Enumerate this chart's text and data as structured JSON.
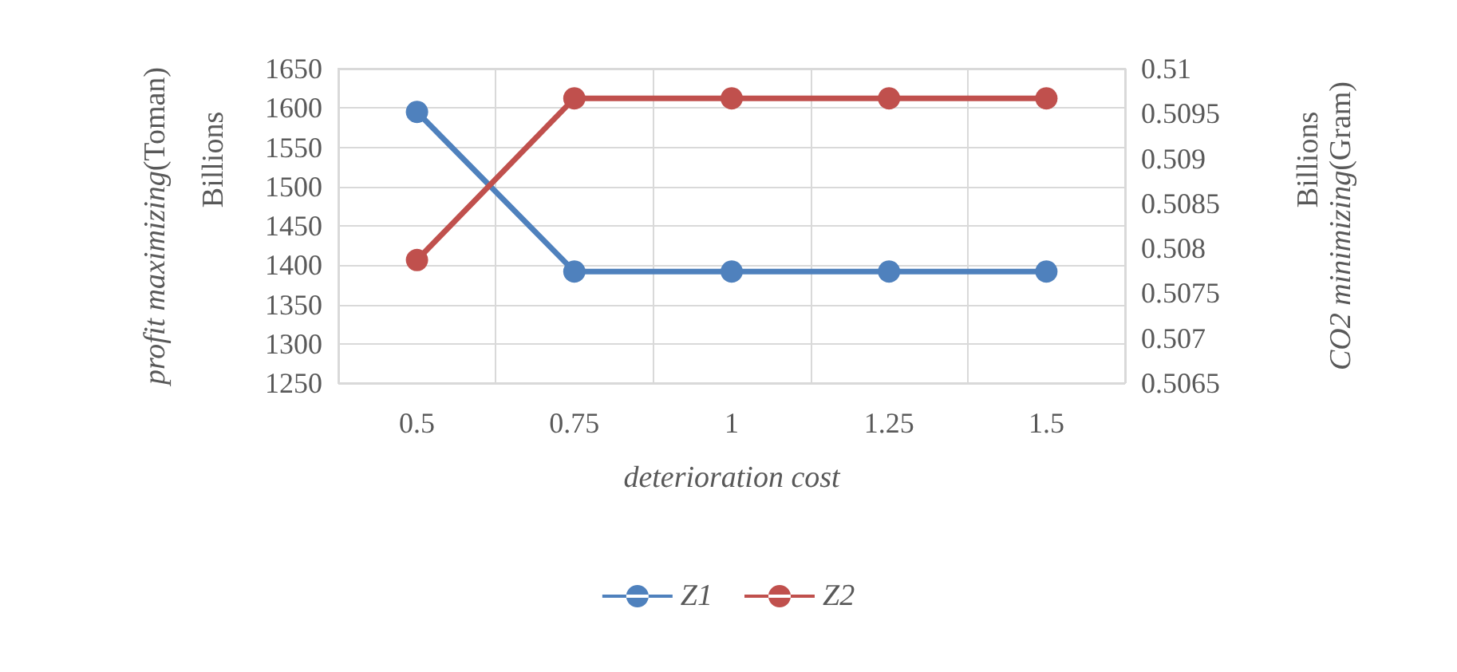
{
  "chart_data": {
    "type": "line",
    "xlabel": "deterioration cost",
    "ylabel": "profit maximizing(Toman)",
    "y2label": "CO2 minimizing(Gram)",
    "annotations": [
      "Billions",
      "Billions"
    ],
    "categories": [
      "0.5",
      "0.75",
      "1",
      "1.25",
      "1.5"
    ],
    "series": [
      {
        "name": "Z1",
        "color": "#4f81bd",
        "values": [
          1595,
          1392,
          1392,
          1392,
          1392
        ]
      },
      {
        "name": "Z2",
        "color": "#c0504d",
        "axis": "y2",
        "values": [
          0.50787,
          0.50967,
          0.50967,
          0.50967,
          0.50967
        ]
      }
    ],
    "ylim": [
      1250,
      1650
    ],
    "yticks": [
      1250,
      1300,
      1350,
      1400,
      1450,
      1500,
      1550,
      1600,
      1650
    ],
    "y2lim": [
      0.5065,
      0.51
    ],
    "y2ticks": [
      0.5065,
      0.507,
      0.5075,
      0.508,
      0.5085,
      0.509,
      0.5095,
      0.51
    ],
    "grid": true,
    "legend": "bottom",
    "marker": "circle",
    "line_style": "solid"
  }
}
